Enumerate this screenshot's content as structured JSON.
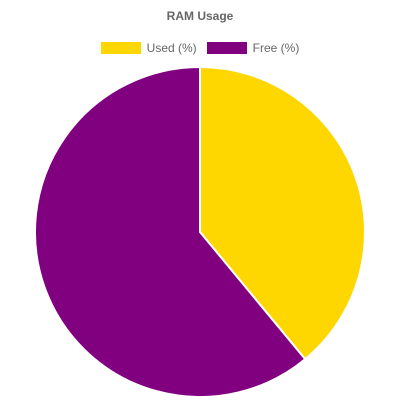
{
  "chart_data": {
    "type": "pie",
    "title": "RAM Usage",
    "categories": [
      "Used (%)",
      "Free (%)"
    ],
    "values": [
      39,
      61
    ],
    "colors": [
      "#FFD700",
      "#800080"
    ],
    "legend_position": "top"
  }
}
